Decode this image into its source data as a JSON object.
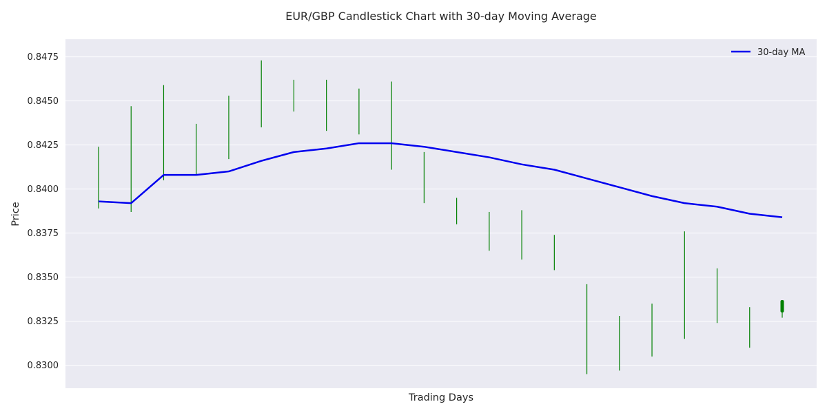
{
  "chart_data": {
    "type": "candlestick",
    "title": "EUR/GBP Candlestick Chart with 30-day Moving Average",
    "xlabel": "Trading Days",
    "ylabel": "Price",
    "ylim": [
      0.8287,
      0.8485
    ],
    "yticks": [
      "0.8300",
      "0.8325",
      "0.8350",
      "0.8375",
      "0.8400",
      "0.8425",
      "0.8450",
      "0.8475"
    ],
    "grid": true,
    "legend_position": "top-right",
    "candles": [
      {
        "high": 0.8424,
        "low": 0.8389
      },
      {
        "high": 0.8447,
        "low": 0.8387
      },
      {
        "high": 0.8459,
        "low": 0.8405
      },
      {
        "high": 0.8437,
        "low": 0.8408
      },
      {
        "high": 0.8453,
        "low": 0.8417
      },
      {
        "high": 0.8473,
        "low": 0.8435
      },
      {
        "high": 0.8462,
        "low": 0.8444
      },
      {
        "high": 0.8462,
        "low": 0.8433
      },
      {
        "high": 0.8457,
        "low": 0.8431
      },
      {
        "high": 0.8461,
        "low": 0.8411
      },
      {
        "high": 0.8421,
        "low": 0.8392
      },
      {
        "high": 0.8395,
        "low": 0.838
      },
      {
        "high": 0.8387,
        "low": 0.8365
      },
      {
        "high": 0.8388,
        "low": 0.836
      },
      {
        "high": 0.8374,
        "low": 0.8354
      },
      {
        "high": 0.8346,
        "low": 0.8295
      },
      {
        "high": 0.8328,
        "low": 0.8297
      },
      {
        "high": 0.8335,
        "low": 0.8305
      },
      {
        "high": 0.8376,
        "low": 0.8315
      },
      {
        "high": 0.8355,
        "low": 0.8324
      },
      {
        "high": 0.8333,
        "low": 0.831
      },
      {
        "high": 0.8337,
        "low": 0.8327,
        "open": 0.8337,
        "close": 0.833
      }
    ],
    "series": [
      {
        "name": "30-day MA",
        "color": "#0000ee",
        "values": [
          0.8393,
          0.8392,
          0.8408,
          0.8408,
          0.841,
          0.8416,
          0.8421,
          0.8423,
          0.8426,
          0.8426,
          0.8424,
          0.8421,
          0.8418,
          0.8414,
          0.8411,
          0.8406,
          0.8401,
          0.8396,
          0.8392,
          0.839,
          0.8386,
          0.8384
        ]
      }
    ],
    "colors": {
      "candle": "#008000",
      "plot_background": "#eaeaf2",
      "grid": "#ffffff"
    }
  }
}
